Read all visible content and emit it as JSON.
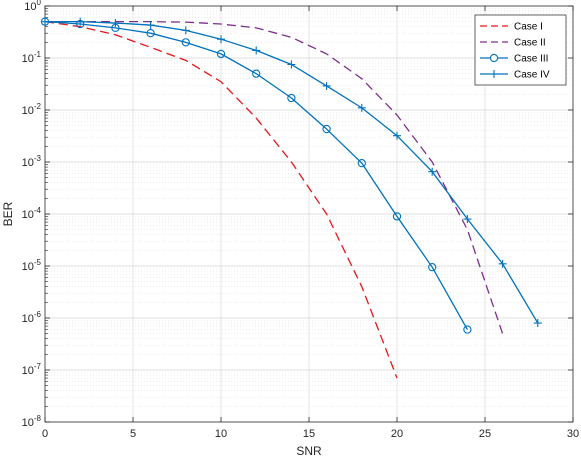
{
  "chart_data": {
    "type": "line",
    "xlabel": "SNR",
    "ylabel": "BER",
    "xlim": [
      0,
      30
    ],
    "ylim": [
      1e-08,
      1
    ],
    "yscale": "log",
    "xticks": [
      "0",
      "5",
      "10",
      "15",
      "20",
      "25",
      "30"
    ],
    "ytick_mantissa": "10",
    "ytick_exponents": [
      "-8",
      "-7",
      "-6",
      "-5",
      "-4",
      "-3",
      "-2",
      "-1",
      "0"
    ],
    "grid": true,
    "legend_position": "top-right",
    "series": [
      {
        "name": "Case I",
        "color": "#e8161a",
        "style": "dashed",
        "marker": "none",
        "x": [
          0,
          2,
          4,
          6,
          8,
          10,
          12,
          14,
          16,
          18,
          20
        ],
        "y": [
          0.5,
          0.4,
          0.28,
          0.16,
          0.09,
          0.035,
          0.007,
          0.001,
          0.0001,
          4e-06,
          7e-08
        ]
      },
      {
        "name": "Case II",
        "color": "#7e2f8e",
        "style": "dashed",
        "marker": "none",
        "x": [
          0,
          2,
          4,
          6,
          8,
          10,
          12,
          14,
          16,
          18,
          20,
          22,
          24,
          26
        ],
        "y": [
          0.5,
          0.5,
          0.5,
          0.5,
          0.49,
          0.45,
          0.38,
          0.25,
          0.12,
          0.04,
          0.008,
          0.001,
          5e-05,
          5e-07
        ]
      },
      {
        "name": "Case III",
        "color": "#0072bd",
        "style": "solid",
        "marker": "circle",
        "x": [
          0,
          2,
          4,
          6,
          8,
          10,
          12,
          14,
          16,
          18,
          20,
          22,
          24
        ],
        "y": [
          0.5,
          0.45,
          0.38,
          0.3,
          0.2,
          0.12,
          0.05,
          0.017,
          0.0043,
          0.00095,
          9e-05,
          9.5e-06,
          6e-07
        ]
      },
      {
        "name": "Case IV",
        "color": "#0072bd",
        "style": "solid",
        "marker": "plus",
        "x": [
          0,
          2,
          4,
          6,
          8,
          10,
          12,
          14,
          16,
          18,
          20,
          22,
          24,
          26,
          28
        ],
        "y": [
          0.5,
          0.5,
          0.47,
          0.43,
          0.34,
          0.23,
          0.14,
          0.075,
          0.029,
          0.011,
          0.0032,
          0.00065,
          8e-05,
          1.1e-05,
          8e-07
        ]
      }
    ]
  }
}
